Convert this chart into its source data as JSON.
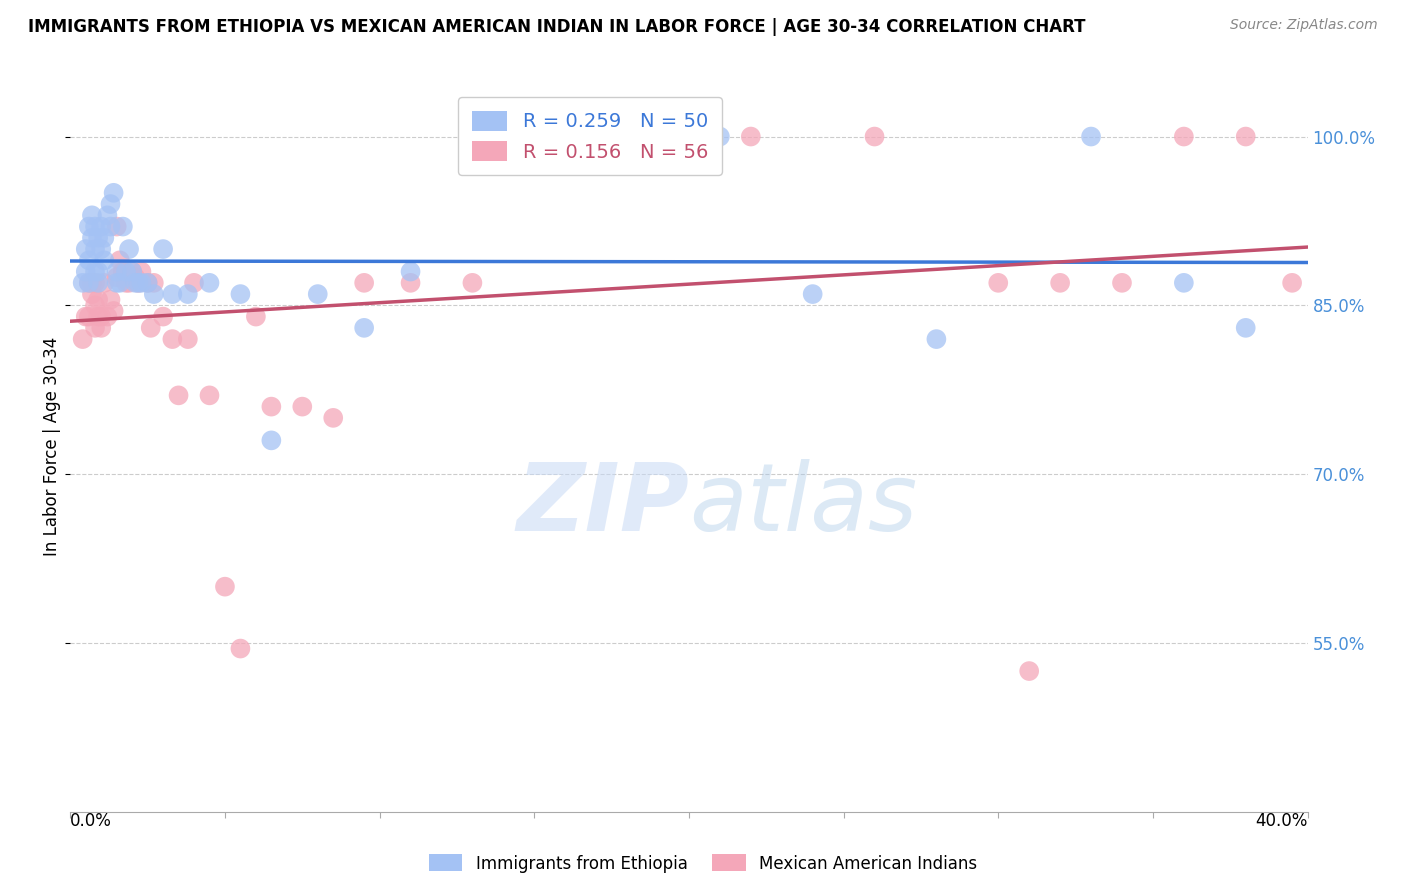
{
  "title": "IMMIGRANTS FROM ETHIOPIA VS MEXICAN AMERICAN INDIAN IN LABOR FORCE | AGE 30-34 CORRELATION CHART",
  "source": "Source: ZipAtlas.com",
  "ylabel": "In Labor Force | Age 30-34",
  "ytick_values": [
    1.0,
    0.85,
    0.7,
    0.55
  ],
  "ytick_labels": [
    "100.0%",
    "85.0%",
    "70.0%",
    "55.0%"
  ],
  "xmin": 0.0,
  "xmax": 0.4,
  "ymin": 0.4,
  "ymax": 1.05,
  "blue_R": 0.259,
  "blue_N": 50,
  "pink_R": 0.156,
  "pink_N": 56,
  "legend_label_blue": "Immigrants from Ethiopia",
  "legend_label_pink": "Mexican American Indians",
  "blue_color": "#a4c2f4",
  "pink_color": "#f4a7b9",
  "blue_line_color": "#3c78d8",
  "pink_line_color": "#c2506e",
  "blue_scatter_x": [
    0.004,
    0.005,
    0.005,
    0.006,
    0.006,
    0.006,
    0.007,
    0.007,
    0.008,
    0.008,
    0.008,
    0.009,
    0.009,
    0.009,
    0.01,
    0.01,
    0.011,
    0.011,
    0.012,
    0.013,
    0.013,
    0.014,
    0.015,
    0.015,
    0.016,
    0.017,
    0.018,
    0.019,
    0.02,
    0.021,
    0.022,
    0.023,
    0.025,
    0.027,
    0.03,
    0.033,
    0.038,
    0.045,
    0.055,
    0.065,
    0.08,
    0.095,
    0.11,
    0.155,
    0.21,
    0.24,
    0.28,
    0.33,
    0.36,
    0.38
  ],
  "blue_scatter_y": [
    0.87,
    0.88,
    0.9,
    0.89,
    0.92,
    0.87,
    0.91,
    0.93,
    0.88,
    0.9,
    0.92,
    0.88,
    0.91,
    0.87,
    0.9,
    0.92,
    0.91,
    0.89,
    0.93,
    0.92,
    0.94,
    0.95,
    0.87,
    0.88,
    0.87,
    0.92,
    0.88,
    0.9,
    0.88,
    0.87,
    0.87,
    0.87,
    0.87,
    0.86,
    0.9,
    0.86,
    0.86,
    0.87,
    0.86,
    0.73,
    0.86,
    0.83,
    0.88,
    1.0,
    1.0,
    0.86,
    0.82,
    1.0,
    0.87,
    0.83
  ],
  "pink_scatter_x": [
    0.004,
    0.005,
    0.006,
    0.006,
    0.007,
    0.007,
    0.008,
    0.008,
    0.008,
    0.009,
    0.009,
    0.01,
    0.01,
    0.011,
    0.012,
    0.013,
    0.014,
    0.015,
    0.015,
    0.016,
    0.017,
    0.018,
    0.019,
    0.02,
    0.021,
    0.022,
    0.023,
    0.025,
    0.026,
    0.027,
    0.03,
    0.033,
    0.035,
    0.038,
    0.04,
    0.045,
    0.05,
    0.055,
    0.06,
    0.065,
    0.075,
    0.085,
    0.095,
    0.11,
    0.13,
    0.16,
    0.185,
    0.22,
    0.26,
    0.3,
    0.32,
    0.34,
    0.36,
    0.38,
    0.395,
    0.31
  ],
  "pink_scatter_y": [
    0.82,
    0.84,
    0.84,
    0.87,
    0.86,
    0.87,
    0.83,
    0.85,
    0.87,
    0.855,
    0.84,
    0.83,
    0.84,
    0.87,
    0.84,
    0.855,
    0.845,
    0.875,
    0.92,
    0.89,
    0.88,
    0.87,
    0.87,
    0.88,
    0.875,
    0.87,
    0.88,
    0.87,
    0.83,
    0.87,
    0.84,
    0.82,
    0.77,
    0.82,
    0.87,
    0.77,
    0.6,
    0.545,
    0.84,
    0.76,
    0.76,
    0.75,
    0.87,
    0.87,
    0.87,
    1.0,
    1.0,
    1.0,
    1.0,
    0.87,
    0.87,
    0.87,
    1.0,
    1.0,
    0.87,
    0.525
  ]
}
